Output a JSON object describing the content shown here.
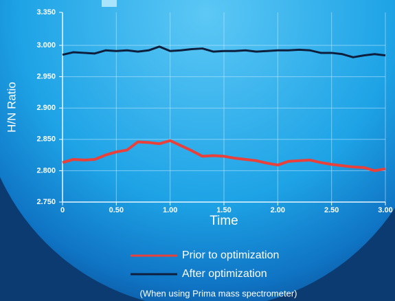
{
  "chart_data": {
    "type": "line",
    "y_label": "H/N Ratio",
    "x_label": "Time",
    "note": "(When using Prima mass spectrometer)",
    "y_top_label": "3.350",
    "x": [
      0,
      0.1,
      0.2,
      0.3,
      0.4,
      0.5,
      0.6,
      0.7,
      0.8,
      0.9,
      1.0,
      1.1,
      1.2,
      1.3,
      1.4,
      1.5,
      1.6,
      1.7,
      1.8,
      1.9,
      2.0,
      2.1,
      2.2,
      2.3,
      2.4,
      2.5,
      2.6,
      2.7,
      2.8,
      2.9,
      3.0
    ],
    "series": [
      {
        "name": "Prior to optimization",
        "color": "#e8403a",
        "values": [
          2.813,
          2.818,
          2.817,
          2.818,
          2.825,
          2.83,
          2.833,
          2.846,
          2.845,
          2.843,
          2.848,
          2.84,
          2.832,
          2.823,
          2.824,
          2.823,
          2.82,
          2.818,
          2.816,
          2.812,
          2.809,
          2.815,
          2.816,
          2.817,
          2.813,
          2.81,
          2.808,
          2.806,
          2.805,
          2.8,
          2.803
        ]
      },
      {
        "name": "After optimization",
        "color": "#0d1f3c",
        "values": [
          2.985,
          2.989,
          2.988,
          2.987,
          2.992,
          2.991,
          2.992,
          2.99,
          2.992,
          2.998,
          2.991,
          2.992,
          2.994,
          2.995,
          2.99,
          2.991,
          2.991,
          2.992,
          2.99,
          2.991,
          2.992,
          2.992,
          2.993,
          2.992,
          2.988,
          2.988,
          2.986,
          2.981,
          2.984,
          2.986,
          2.984
        ]
      }
    ],
    "xlim": [
      0,
      3
    ],
    "xticks": [
      0,
      {
        "value": 0.5,
        "label": "0.50"
      },
      {
        "value": 1,
        "label": "1.00"
      },
      {
        "value": 1.5,
        "label": "1.50"
      },
      {
        "value": 2,
        "label": "2.00"
      },
      {
        "value": 2.5,
        "label": "2.50"
      },
      {
        "value": 3,
        "label": "3.00"
      }
    ],
    "ylim": [
      2.75,
      3.0
    ],
    "yticks": [
      {
        "value": 2.75,
        "label": "2.750"
      },
      {
        "value": 2.8,
        "label": "2.800"
      },
      {
        "value": 2.85,
        "label": "2.850"
      },
      {
        "value": 2.9,
        "label": "2.900"
      },
      {
        "value": 2.95,
        "label": "2.950"
      },
      {
        "value": 3,
        "label": "3.000"
      }
    ],
    "grid": true
  }
}
